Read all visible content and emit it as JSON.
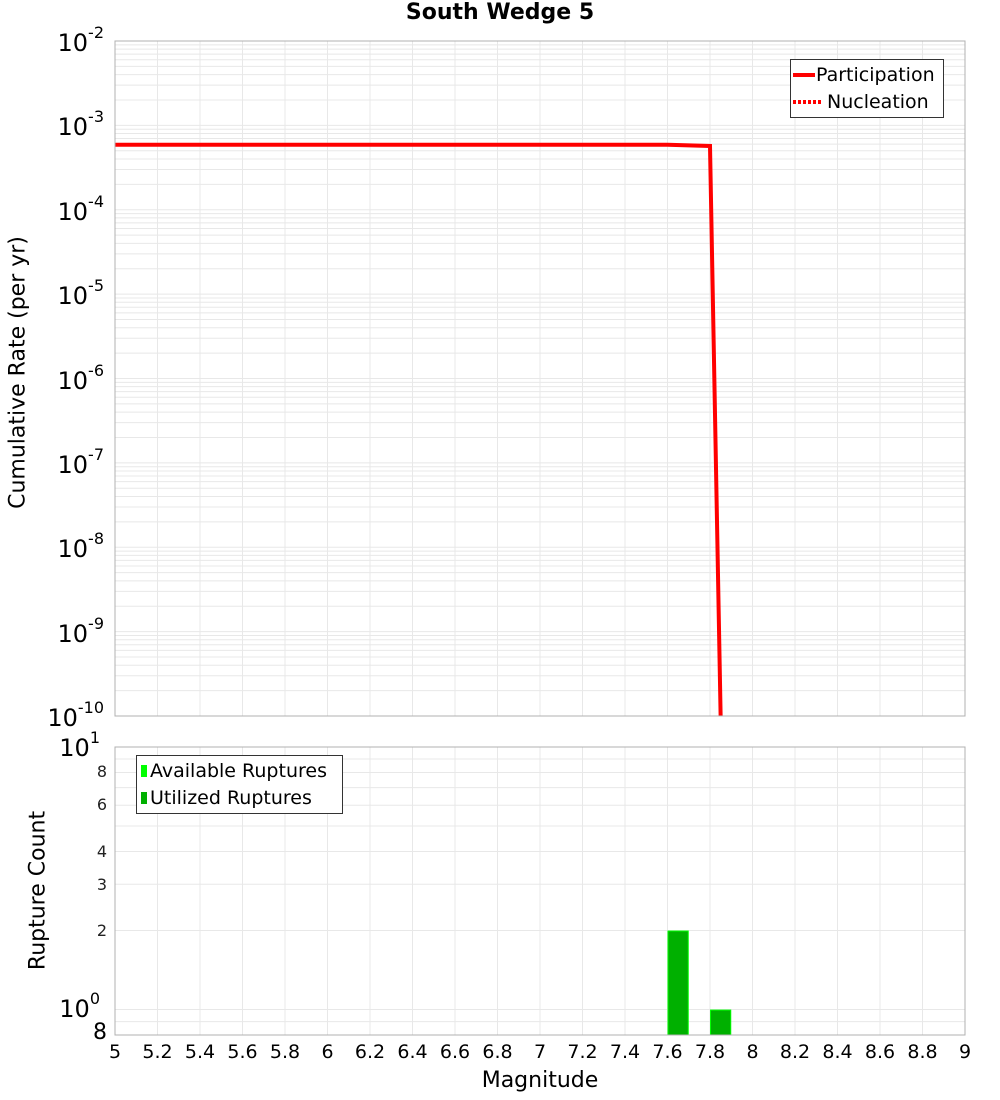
{
  "chart_data": [
    {
      "type": "line",
      "title": "South Wedge 5",
      "xlabel": "Magnitude",
      "ylabel": "Cumulative Rate (per yr)",
      "yscale": "log",
      "xlim": [
        5,
        9
      ],
      "ylim": [
        1e-10,
        0.01
      ],
      "grid": true,
      "legend_position": "upper right",
      "y_tick_labels": [
        "10^-2",
        "10^-3",
        "10^-4",
        "10^-5",
        "10^-6",
        "10^-7",
        "10^-8",
        "10^-9",
        "10^-10"
      ],
      "series": [
        {
          "name": "Participation",
          "style": "solid",
          "color": "#ff0000",
          "x": [
            5.0,
            5.5,
            6.0,
            6.5,
            7.0,
            7.5,
            7.6,
            7.8,
            7.85
          ],
          "y": [
            0.00059,
            0.00059,
            0.00059,
            0.00059,
            0.00059,
            0.00059,
            0.00059,
            0.00057,
            1e-10
          ]
        },
        {
          "name": "Nucleation",
          "style": "dotted",
          "color": "#ff0000",
          "x": [
            5.0,
            5.5,
            6.0,
            6.5,
            7.0,
            7.5,
            7.6,
            7.8,
            7.85
          ],
          "y": [
            0.00059,
            0.00059,
            0.00059,
            0.00059,
            0.00059,
            0.00059,
            0.00059,
            0.00057,
            1e-10
          ]
        }
      ]
    },
    {
      "type": "bar",
      "xlabel": "Magnitude",
      "ylabel": "Rupture Count",
      "yscale": "log",
      "xlim": [
        5,
        9
      ],
      "ylim": [
        0.8,
        10
      ],
      "grid": true,
      "legend_position": "upper left",
      "x_tick_labels": [
        "5",
        "5.2",
        "5.4",
        "5.6",
        "5.8",
        "6",
        "6.2",
        "6.4",
        "6.6",
        "6.8",
        "7",
        "7.2",
        "7.4",
        "7.6",
        "7.8",
        "8",
        "8.2",
        "8.4",
        "8.6",
        "8.8",
        "9"
      ],
      "y_tick_labels": [
        "8",
        "10^0",
        "2",
        "3",
        "4",
        "6",
        "8",
        "10^1"
      ],
      "series": [
        {
          "name": "Available Ruptures",
          "color": "#00ff00",
          "x": [
            7.65,
            7.85
          ],
          "values": [
            2,
            1
          ]
        },
        {
          "name": "Utilized Ruptures",
          "color": "#00b000",
          "x": [
            7.65,
            7.85
          ],
          "values": [
            2,
            1
          ]
        }
      ]
    }
  ],
  "title": "South Wedge 5",
  "top": {
    "ylabel": "Cumulative Rate (per yr)",
    "yticks": [
      {
        "base": "10",
        "exp": "-2"
      },
      {
        "base": "10",
        "exp": "-3"
      },
      {
        "base": "10",
        "exp": "-4"
      },
      {
        "base": "10",
        "exp": "-5"
      },
      {
        "base": "10",
        "exp": "-6"
      },
      {
        "base": "10",
        "exp": "-7"
      },
      {
        "base": "10",
        "exp": "-8"
      },
      {
        "base": "10",
        "exp": "-9"
      },
      {
        "base": "10",
        "exp": "-10"
      }
    ],
    "legend": {
      "participation": "Participation",
      "nucleation": "Nucleation"
    }
  },
  "bottom": {
    "ylabel": "Rupture Count",
    "ytick_1e1": {
      "base": "10",
      "exp": "1"
    },
    "ytick_1e0": {
      "base": "10",
      "exp": "0"
    },
    "minor_ticks": {
      "t8a": "8",
      "t6": "6",
      "t4": "4",
      "t3": "3",
      "t2": "2",
      "t8b": "8"
    },
    "legend": {
      "available": "Available Ruptures",
      "utilized": "Utilized Ruptures"
    }
  },
  "xaxis": {
    "label": "Magnitude",
    "ticks": [
      "5",
      "5.2",
      "5.4",
      "5.6",
      "5.8",
      "6",
      "6.2",
      "6.4",
      "6.6",
      "6.8",
      "7",
      "7.2",
      "7.4",
      "7.6",
      "7.8",
      "8",
      "8.2",
      "8.4",
      "8.6",
      "8.8",
      "9"
    ]
  },
  "colors": {
    "line": "#ff0000",
    "available": "#00ff00",
    "utilized": "#00b000",
    "grid": "#e8e8e8",
    "frame": "#b0b0b0"
  }
}
